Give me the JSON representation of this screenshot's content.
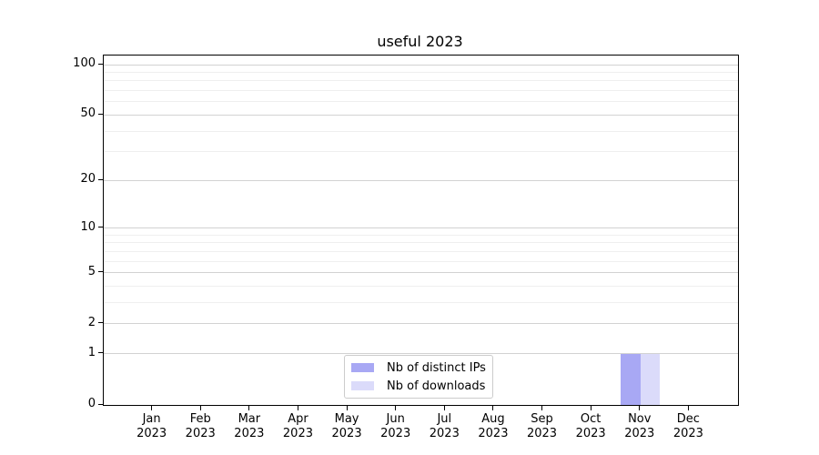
{
  "chart_data": {
    "type": "bar",
    "title": "useful 2023",
    "categories": [
      "Jan",
      "Feb",
      "Mar",
      "Apr",
      "May",
      "Jun",
      "Jul",
      "Aug",
      "Sep",
      "Oct",
      "Nov",
      "Dec"
    ],
    "category_year": "2023",
    "series": [
      {
        "name": "Nb of distinct IPs",
        "color": "#a8a8f4",
        "values": [
          0,
          0,
          0,
          0,
          0,
          0,
          0,
          0,
          0,
          0,
          1,
          0
        ]
      },
      {
        "name": "Nb of downloads",
        "color": "#dbdbfa",
        "values": [
          0,
          0,
          0,
          0,
          0,
          0,
          0,
          0,
          0,
          0,
          1,
          0
        ]
      }
    ],
    "xlabel": "",
    "ylabel": "",
    "yscale": "log1p",
    "ylim": [
      0,
      100
    ],
    "yticks": [
      0,
      1,
      2,
      5,
      10,
      20,
      50,
      100
    ],
    "yticks_minor": [
      3,
      4,
      6,
      7,
      8,
      9,
      30,
      40,
      60,
      70,
      80,
      90
    ],
    "grid": true,
    "legend_position": "lower center",
    "colors": {
      "grid_major": "#d2d2d2",
      "grid_minor": "#efefef",
      "axis": "#000000",
      "background": "#ffffff"
    }
  }
}
